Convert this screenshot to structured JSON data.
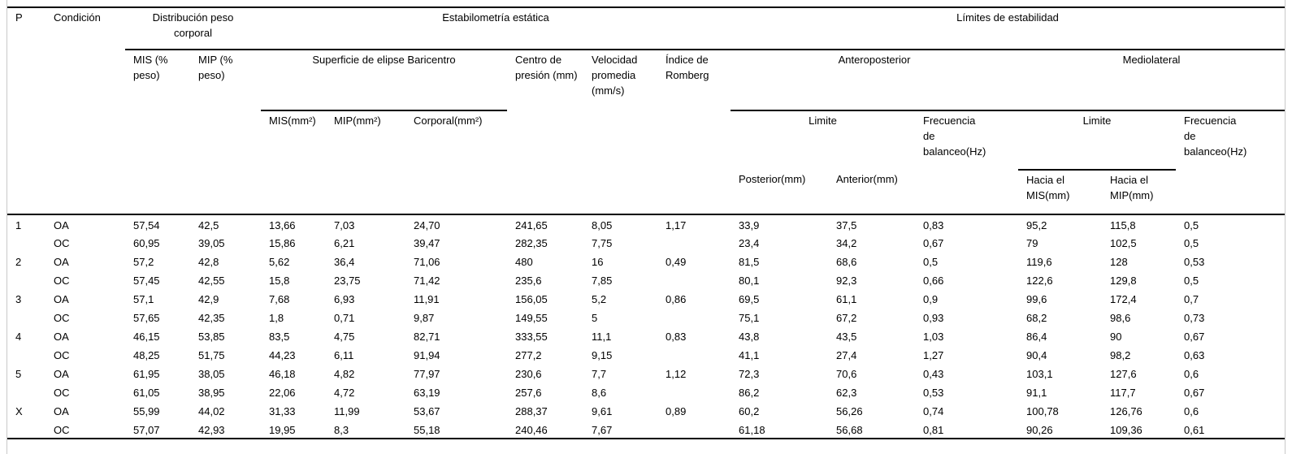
{
  "colors": {
    "rule": "#000000",
    "frame_edge": "#c9c9c9",
    "text": "#000000",
    "background": "#ffffff"
  },
  "header": {
    "p": "P",
    "condicion": "Condición",
    "group_distribucion": "Distribución peso corporal",
    "group_estabilometria": "Estabilometría estática",
    "group_limites": "Límites de estabilidad",
    "col_mis_peso": "MIS (% peso)",
    "col_mip_peso": "MIP (% peso)",
    "group_superficie": "Superficie de elipse Baricentro",
    "col_centro_presion": "Centro de presión (mm)",
    "col_velocidad": "Velocidad promedia (mm/s)",
    "col_indice_romberg": "Índice de Romberg",
    "group_anteroposterior": "Anteroposterior",
    "group_mediolateral": "Mediolateral",
    "col_mis_mm2": "MIS(mm²)",
    "col_mip_mm2": "MIP(mm²)",
    "col_corporal_mm2": "Corporal(mm²)",
    "limite_ap": "Limite",
    "frecuencia_ap": "Frecuencia de balanceo(Hz)",
    "limite_ml": "Limite",
    "frecuencia_ml": "Frecuencia de balanceo(Hz)",
    "col_posterior": "Posterior(mm)",
    "col_anterior": "Anterior(mm)",
    "col_hacia_mis": "Hacia el MIS(mm)",
    "col_hacia_mip": "Hacia el MIP(mm)"
  },
  "table": {
    "rows": [
      [
        "1",
        "OA",
        "57,54",
        "42,5",
        "13,66",
        "7,03",
        "24,70",
        "241,65",
        "8,05",
        "1,17",
        "33,9",
        "37,5",
        "0,83",
        "95,2",
        "115,8",
        "0,5"
      ],
      [
        "",
        "OC",
        "60,95",
        "39,05",
        "15,86",
        "6,21",
        "39,47",
        "282,35",
        "7,75",
        "",
        "23,4",
        "34,2",
        "0,67",
        "79",
        "102,5",
        "0,5"
      ],
      [
        "2",
        "OA",
        "57,2",
        "42,8",
        "5,62",
        "36,4",
        "71,06",
        "480",
        "16",
        "0,49",
        "81,5",
        "68,6",
        "0,5",
        "119,6",
        "128",
        "0,53"
      ],
      [
        "",
        "OC",
        "57,45",
        "42,55",
        "15,8",
        "23,75",
        "71,42",
        "235,6",
        "7,85",
        "",
        "80,1",
        "92,3",
        "0,66",
        "122,6",
        "129,8",
        "0,5"
      ],
      [
        "3",
        "OA",
        "57,1",
        "42,9",
        "7,68",
        "6,93",
        "11,91",
        "156,05",
        "5,2",
        "0,86",
        "69,5",
        "61,1",
        "0,9",
        "99,6",
        "172,4",
        "0,7"
      ],
      [
        "",
        "OC",
        "57,65",
        "42,35",
        "1,8",
        "0,71",
        "9,87",
        "149,55",
        "5",
        "",
        "75,1",
        "67,2",
        "0,93",
        "68,2",
        "98,6",
        "0,73"
      ],
      [
        "4",
        "OA",
        "46,15",
        "53,85",
        "83,5",
        "4,75",
        "82,71",
        "333,55",
        "11,1",
        "0,83",
        "43,8",
        "43,5",
        "1,03",
        "86,4",
        "90",
        "0,67"
      ],
      [
        "",
        "OC",
        "48,25",
        "51,75",
        "44,23",
        "6,11",
        "91,94",
        "277,2",
        "9,15",
        "",
        "41,1",
        "27,4",
        "1,27",
        "90,4",
        "98,2",
        "0,63"
      ],
      [
        "5",
        "OA",
        "61,95",
        "38,05",
        "46,18",
        "4,82",
        "77,97",
        "230,6",
        "7,7",
        "1,12",
        "72,3",
        "70,6",
        "0,43",
        "103,1",
        "127,6",
        "0,6"
      ],
      [
        "",
        "OC",
        "61,05",
        "38,95",
        "22,06",
        "4,72",
        "63,19",
        "257,6",
        "8,6",
        "",
        "86,2",
        "62,3",
        "0,53",
        "91,1",
        "117,7",
        "0,67"
      ],
      [
        "X",
        "OA",
        "55,99",
        "44,02",
        "31,33",
        "11,99",
        "53,67",
        "288,37",
        "9,61",
        "0,89",
        "60,2",
        "56,26",
        "0,74",
        "100,78",
        "126,76",
        "0,6"
      ],
      [
        "",
        "OC",
        "57,07",
        "42,93",
        "19,95",
        "8,3",
        "55,18",
        "240,46",
        "7,67",
        "",
        "61,18",
        "56,68",
        "0,81",
        "90,26",
        "109,36",
        "0,61"
      ]
    ]
  }
}
